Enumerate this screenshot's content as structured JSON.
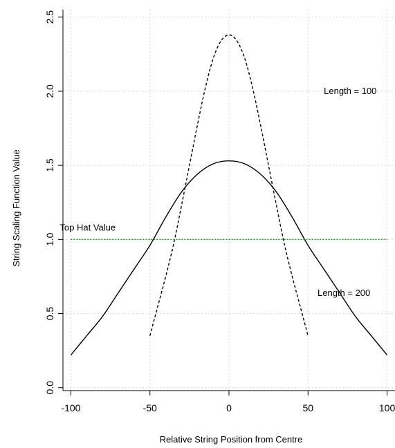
{
  "chart_data": {
    "type": "line",
    "xlabel": "Relative String Position from Centre",
    "ylabel": "String Scaling Function Value",
    "xlim": [
      -105,
      105
    ],
    "ylim": [
      -0.02,
      2.55
    ],
    "xticks": [
      -100,
      -50,
      0,
      50,
      100
    ],
    "yticks": [
      0.0,
      0.5,
      1.0,
      1.5,
      2.0,
      2.5
    ],
    "xtick_labels": [
      "-100",
      "-50",
      "0",
      "50",
      "100"
    ],
    "ytick_labels": [
      "0.0",
      "0.5",
      "1.0",
      "1.5",
      "2.0",
      "2.5"
    ],
    "grid": true,
    "series": [
      {
        "name": "Length = 200",
        "style": "solid",
        "color": "#000000",
        "x": [
          -100,
          -90,
          -80,
          -70,
          -60,
          -50,
          -40,
          -30,
          -20,
          -10,
          0,
          10,
          20,
          30,
          40,
          50,
          60,
          70,
          80,
          90,
          100
        ],
        "y": [
          0.22,
          0.35,
          0.48,
          0.64,
          0.8,
          0.96,
          1.15,
          1.32,
          1.44,
          1.51,
          1.53,
          1.51,
          1.44,
          1.32,
          1.15,
          0.96,
          0.8,
          0.64,
          0.48,
          0.35,
          0.22
        ]
      },
      {
        "name": "Length = 100",
        "style": "dashed",
        "color": "#000000",
        "x": [
          -50,
          -45,
          -40,
          -35,
          -30,
          -25,
          -20,
          -15,
          -10,
          -5,
          0,
          5,
          10,
          15,
          20,
          25,
          30,
          35,
          40,
          45,
          50
        ],
        "y": [
          0.35,
          0.55,
          0.75,
          0.97,
          1.23,
          1.5,
          1.77,
          2.02,
          2.22,
          2.34,
          2.38,
          2.34,
          2.22,
          2.02,
          1.77,
          1.5,
          1.23,
          0.97,
          0.75,
          0.55,
          0.35
        ]
      },
      {
        "name": "Top Hat Value",
        "style": "dotted",
        "color": "#00b000",
        "x": [
          -100,
          100
        ],
        "y": [
          1.0,
          1.0
        ]
      }
    ],
    "annotations": [
      {
        "text": "Length = 100",
        "x": 60,
        "y": 1.98
      },
      {
        "text": "Length = 200",
        "x": 56,
        "y": 0.62
      },
      {
        "text": "Top Hat Value",
        "x": -107,
        "y": 1.06
      }
    ]
  }
}
